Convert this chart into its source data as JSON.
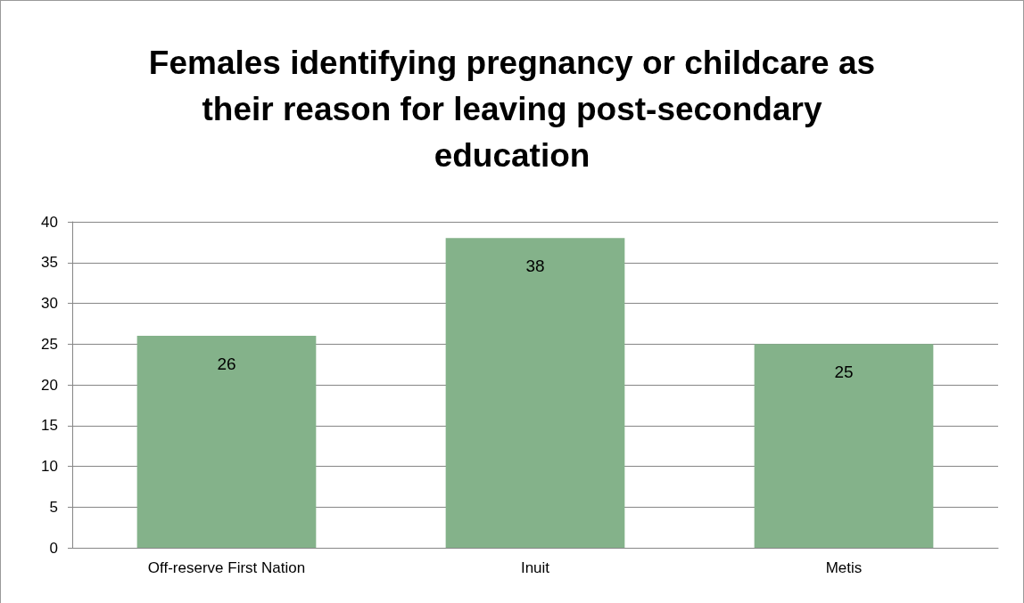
{
  "chart_data": {
    "type": "bar",
    "title": "Females identifying pregnancy or childcare as their reason for leaving post-secondary education",
    "categories": [
      "Off-reserve First Nation",
      "Inuit",
      "Metis"
    ],
    "values": [
      26,
      38,
      25
    ],
    "color": "#84b28a",
    "ylim": [
      0,
      40
    ],
    "yticks": [
      0,
      5,
      10,
      15,
      20,
      25,
      30,
      35,
      40
    ],
    "grid": "y",
    "data_labels": true
  }
}
